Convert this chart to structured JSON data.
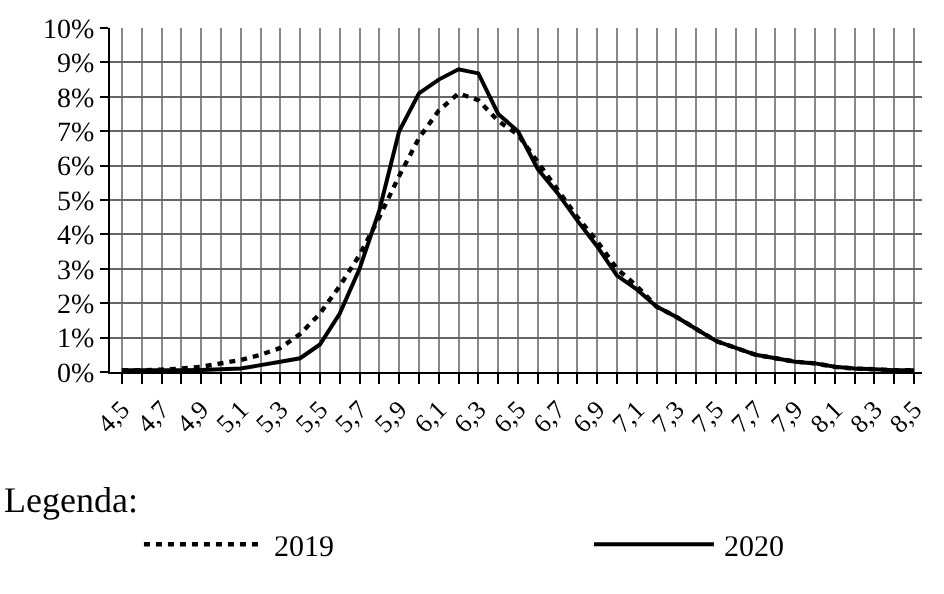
{
  "chart_data": {
    "type": "line",
    "categories": [
      "4,5",
      null,
      "4,7",
      null,
      "4,9",
      null,
      "5,1",
      null,
      "5,3",
      null,
      "5,5",
      null,
      "5,7",
      null,
      "5,9",
      null,
      "6,1",
      null,
      "6,3",
      null,
      "6,5",
      null,
      "6,7",
      null,
      "6,9",
      null,
      "7,1",
      null,
      "7,3",
      null,
      "7,5",
      null,
      "7,7",
      null,
      "7,9",
      null,
      "8,1",
      null,
      "8,3",
      null,
      "8,5"
    ],
    "series": [
      {
        "name": "2019",
        "color": "#000000",
        "line_style": "dotted",
        "values": [
          0.05,
          0.05,
          0.07,
          0.1,
          0.15,
          0.25,
          0.35,
          0.5,
          0.7,
          1.1,
          1.7,
          2.5,
          3.4,
          4.5,
          5.7,
          6.8,
          7.6,
          8.1,
          7.9,
          7.3,
          6.9,
          6.1,
          5.3,
          4.5,
          3.8,
          3.0,
          2.5,
          1.9,
          1.6,
          1.25,
          0.9,
          0.7,
          0.5,
          0.4,
          0.3,
          0.25,
          0.15,
          0.1,
          0.08,
          0.05,
          0.05
        ]
      },
      {
        "name": "2020",
        "color": "#000000",
        "line_style": "solid",
        "values": [
          0.05,
          0.05,
          0.05,
          0.05,
          0.06,
          0.08,
          0.1,
          0.2,
          0.3,
          0.4,
          0.8,
          1.7,
          3.0,
          4.7,
          7.0,
          8.1,
          8.5,
          8.8,
          8.68,
          7.5,
          7.0,
          5.9,
          5.2,
          4.4,
          3.65,
          2.8,
          2.4,
          1.9,
          1.6,
          1.25,
          0.9,
          0.7,
          0.5,
          0.4,
          0.3,
          0.25,
          0.15,
          0.1,
          0.08,
          0.05,
          0.05
        ]
      }
    ],
    "ylim": [
      0,
      10
    ],
    "yticks": [
      {
        "value": 0,
        "label": "0%"
      },
      {
        "value": 1,
        "label": "1%"
      },
      {
        "value": 2,
        "label": "2%"
      },
      {
        "value": 3,
        "label": "3%"
      },
      {
        "value": 4,
        "label": "4%"
      },
      {
        "value": 5,
        "label": "5%"
      },
      {
        "value": 6,
        "label": "6%"
      },
      {
        "value": 7,
        "label": "7%"
      },
      {
        "value": 8,
        "label": "8%"
      },
      {
        "value": 9,
        "label": "9%"
      },
      {
        "value": 10,
        "label": "10%"
      }
    ],
    "grid": true,
    "legend": "bottom",
    "legend_title": "Legenda:",
    "marker": "none"
  }
}
